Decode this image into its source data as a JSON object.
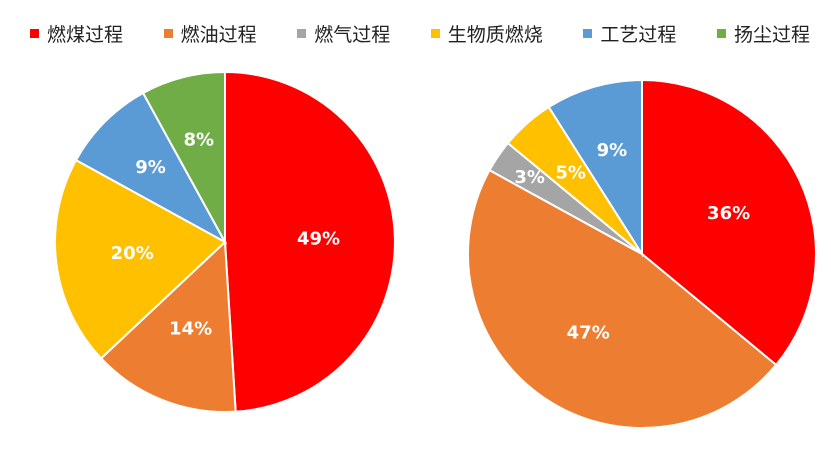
{
  "legend": {
    "items": [
      {
        "label": "燃煤过程",
        "color": "#FF0000"
      },
      {
        "label": "燃油过程",
        "color": "#ED7D31"
      },
      {
        "label": "燃气过程",
        "color": "#A5A5A5"
      },
      {
        "label": "生物质燃烧",
        "color": "#FFC000"
      },
      {
        "label": "工艺过程",
        "color": "#5B9BD5"
      },
      {
        "label": "扬尘过程",
        "color": "#70AD47"
      }
    ]
  },
  "chart_data": [
    {
      "type": "pie",
      "legend_position": "top",
      "slices": [
        {
          "category": "燃煤过程",
          "value": 49,
          "label": "49%",
          "color": "#FF0000"
        },
        {
          "category": "燃油过程",
          "value": 14,
          "label": "14%",
          "color": "#ED7D31"
        },
        {
          "category": "生物质燃烧",
          "value": 20,
          "label": "20%",
          "color": "#FFC000"
        },
        {
          "category": "工艺过程",
          "value": 9,
          "label": "9%",
          "color": "#5B9BD5"
        },
        {
          "category": "扬尘过程",
          "value": 8,
          "label": "8%",
          "color": "#70AD47"
        }
      ]
    },
    {
      "type": "pie",
      "legend_position": "top",
      "slices": [
        {
          "category": "燃煤过程",
          "value": 36,
          "label": "36%",
          "color": "#FF0000"
        },
        {
          "category": "燃油过程",
          "value": 47,
          "label": "47%",
          "color": "#ED7D31"
        },
        {
          "category": "燃气过程",
          "value": 3,
          "label": "3%",
          "color": "#A5A5A5"
        },
        {
          "category": "生物质燃烧",
          "value": 5,
          "label": "5%",
          "color": "#FFC000"
        },
        {
          "category": "工艺过程",
          "value": 9,
          "label": "9%",
          "color": "#5B9BD5"
        }
      ]
    }
  ]
}
